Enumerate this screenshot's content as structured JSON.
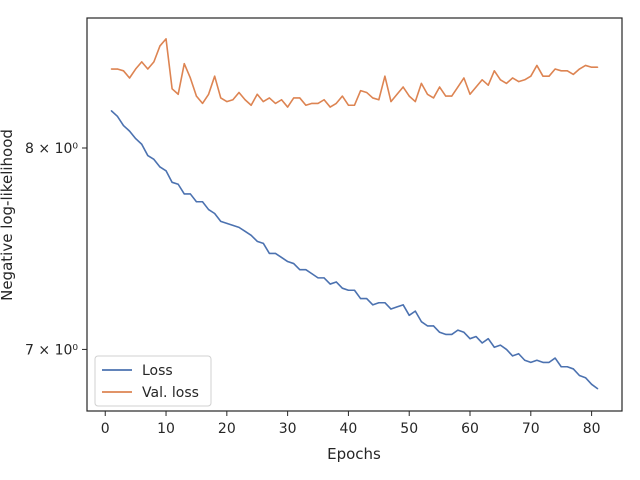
{
  "chart_data": {
    "type": "line",
    "title": "",
    "xlabel": "Epochs",
    "ylabel": "Negative log-likelihood",
    "yscale": "log",
    "xlim": [
      -3,
      85
    ],
    "ylim": [
      6.72,
      8.72
    ],
    "xticks": [
      0,
      10,
      20,
      30,
      40,
      50,
      60,
      70,
      80
    ],
    "yticks": [
      {
        "value": 7,
        "label": "7 × 10⁰"
      },
      {
        "value": 8,
        "label": "8 × 10⁰"
      }
    ],
    "grid": false,
    "legend_position": "lower-left",
    "x": [
      1,
      2,
      3,
      4,
      5,
      6,
      7,
      8,
      9,
      10,
      11,
      12,
      13,
      14,
      15,
      16,
      17,
      18,
      19,
      20,
      21,
      22,
      23,
      24,
      25,
      26,
      27,
      28,
      29,
      30,
      31,
      32,
      33,
      34,
      35,
      36,
      37,
      38,
      39,
      40,
      41,
      42,
      43,
      44,
      45,
      46,
      47,
      48,
      49,
      50,
      51,
      52,
      53,
      54,
      55,
      56,
      57,
      58,
      59,
      60,
      61,
      62,
      63,
      64,
      65,
      66,
      67,
      68,
      69,
      70,
      71,
      72,
      73,
      74,
      75,
      76,
      77,
      78,
      79,
      80,
      81
    ],
    "series": [
      {
        "name": "Loss",
        "color": "#4c72b0",
        "values": [
          8.2,
          8.17,
          8.12,
          8.09,
          8.05,
          8.02,
          7.96,
          7.94,
          7.9,
          7.88,
          7.82,
          7.81,
          7.76,
          7.76,
          7.72,
          7.72,
          7.68,
          7.66,
          7.62,
          7.61,
          7.6,
          7.59,
          7.57,
          7.55,
          7.52,
          7.51,
          7.46,
          7.46,
          7.44,
          7.42,
          7.41,
          7.38,
          7.38,
          7.36,
          7.34,
          7.34,
          7.31,
          7.32,
          7.29,
          7.28,
          7.28,
          7.24,
          7.24,
          7.21,
          7.22,
          7.22,
          7.19,
          7.2,
          7.21,
          7.16,
          7.18,
          7.13,
          7.11,
          7.11,
          7.08,
          7.07,
          7.07,
          7.09,
          7.08,
          7.05,
          7.06,
          7.03,
          7.05,
          7.01,
          7.02,
          7.0,
          6.97,
          6.98,
          6.95,
          6.94,
          6.95,
          6.94,
          6.94,
          6.96,
          6.92,
          6.92,
          6.91,
          6.88,
          6.87,
          6.84,
          6.82
        ]
      },
      {
        "name": "Val. loss",
        "color": "#dd8452",
        "values": [
          8.43,
          8.43,
          8.42,
          8.38,
          8.43,
          8.47,
          8.43,
          8.47,
          8.56,
          8.6,
          8.32,
          8.29,
          8.46,
          8.38,
          8.28,
          8.24,
          8.29,
          8.39,
          8.27,
          8.25,
          8.26,
          8.3,
          8.26,
          8.23,
          8.29,
          8.25,
          8.27,
          8.24,
          8.26,
          8.22,
          8.27,
          8.27,
          8.23,
          8.24,
          8.24,
          8.26,
          8.22,
          8.24,
          8.28,
          8.23,
          8.23,
          8.31,
          8.3,
          8.27,
          8.26,
          8.39,
          8.25,
          8.29,
          8.33,
          8.28,
          8.25,
          8.35,
          8.29,
          8.27,
          8.33,
          8.28,
          8.28,
          8.33,
          8.38,
          8.29,
          8.33,
          8.37,
          8.34,
          8.42,
          8.37,
          8.35,
          8.38,
          8.36,
          8.37,
          8.39,
          8.45,
          8.39,
          8.39,
          8.43,
          8.42,
          8.42,
          8.4,
          8.43,
          8.45,
          8.44,
          8.44
        ]
      }
    ]
  }
}
